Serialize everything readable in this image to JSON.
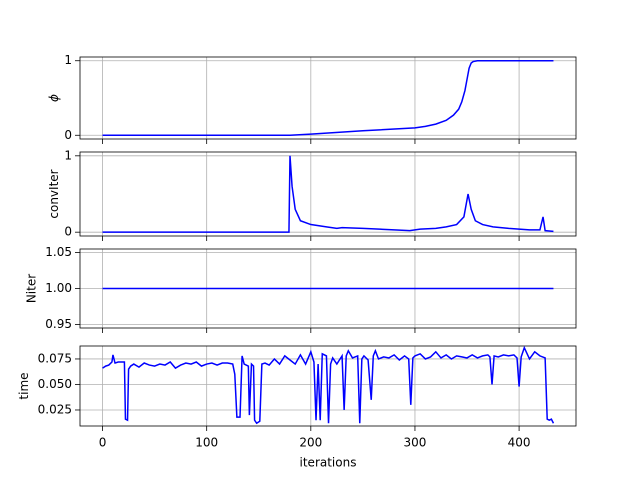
{
  "chart_data": [
    {
      "type": "line",
      "ylabel": "ϕ",
      "grid": true,
      "ylim": [
        -0.05,
        1.05
      ],
      "yticks": [
        0,
        1
      ],
      "x": [
        0,
        100,
        180,
        200,
        250,
        300,
        310,
        320,
        330,
        337,
        342,
        345,
        348,
        350,
        352,
        354,
        356,
        360,
        380,
        400,
        420,
        433
      ],
      "series": [
        {
          "color": "#0000ff",
          "values": [
            0,
            0,
            0,
            0.015,
            0.06,
            0.1,
            0.12,
            0.15,
            0.2,
            0.27,
            0.35,
            0.45,
            0.6,
            0.75,
            0.9,
            0.97,
            0.99,
            1.0,
            1.0,
            1.0,
            1.0,
            1.0
          ]
        }
      ]
    },
    {
      "type": "line",
      "ylabel": "convIter",
      "grid": true,
      "ylim": [
        -0.05,
        1.05
      ],
      "yticks": [
        0,
        1
      ],
      "x": [
        0,
        100,
        179,
        180,
        182,
        185,
        190,
        200,
        215,
        225,
        230,
        250,
        280,
        295,
        305,
        320,
        330,
        340,
        347,
        351,
        354,
        358,
        365,
        375,
        390,
        410,
        420,
        423,
        425,
        433
      ],
      "series": [
        {
          "color": "#0000ff",
          "values": [
            0,
            0,
            0,
            1,
            0.6,
            0.3,
            0.15,
            0.1,
            0.07,
            0.05,
            0.06,
            0.05,
            0.03,
            0.02,
            0.04,
            0.05,
            0.07,
            0.1,
            0.2,
            0.5,
            0.3,
            0.15,
            0.1,
            0.07,
            0.05,
            0.03,
            0.03,
            0.2,
            0.02,
            0.01
          ]
        }
      ]
    },
    {
      "type": "line",
      "ylabel": "Niter",
      "grid": true,
      "ylim": [
        0.945,
        1.055
      ],
      "yticks": [
        {
          "value": 0.95,
          "label": "0.95"
        },
        {
          "value": 1,
          "label": "1.00"
        },
        {
          "value": 1.05,
          "label": "1.05"
        }
      ],
      "x": [
        0,
        433
      ],
      "series": [
        {
          "color": "#0000ff",
          "values": [
            1,
            1
          ]
        }
      ]
    },
    {
      "type": "line",
      "ylabel": "time",
      "xlabel": "iterations",
      "grid": true,
      "ylim": [
        0.0093,
        0.0877
      ],
      "yticks": [
        0.025,
        {
          "value": 0.05,
          "label": "0.050"
        },
        0.075
      ],
      "xlim": [
        -21.65,
        454.65
      ],
      "xticks": [
        0,
        100,
        200,
        300,
        400
      ],
      "x": [
        0,
        3,
        6,
        9,
        10,
        12,
        15,
        18,
        21,
        22,
        24,
        25,
        27,
        30,
        35,
        40,
        45,
        50,
        55,
        60,
        65,
        70,
        75,
        80,
        85,
        90,
        95,
        100,
        105,
        110,
        115,
        120,
        125,
        127,
        129,
        132,
        134,
        136,
        140,
        141,
        143,
        145,
        146,
        148,
        151,
        153,
        156,
        160,
        165,
        170,
        175,
        180,
        185,
        190,
        195,
        200,
        203,
        205,
        207,
        209,
        211,
        215,
        217,
        219,
        221,
        225,
        230,
        232,
        234,
        236,
        240,
        245,
        247,
        249,
        251,
        255,
        258,
        260,
        262,
        265,
        270,
        275,
        280,
        285,
        290,
        294,
        296,
        298,
        300,
        305,
        310,
        315,
        320,
        325,
        330,
        335,
        340,
        345,
        350,
        355,
        360,
        365,
        370,
        372,
        374,
        376,
        380,
        385,
        390,
        395,
        398,
        400,
        402,
        405,
        410,
        415,
        420,
        425,
        427,
        429,
        431,
        433
      ],
      "series": [
        {
          "color": "#0000ff",
          "values": [
            0.066,
            0.068,
            0.069,
            0.072,
            0.079,
            0.071,
            0.072,
            0.072,
            0.072,
            0.016,
            0.015,
            0.065,
            0.068,
            0.07,
            0.067,
            0.071,
            0.069,
            0.068,
            0.07,
            0.069,
            0.072,
            0.066,
            0.069,
            0.071,
            0.07,
            0.072,
            0.068,
            0.07,
            0.071,
            0.069,
            0.071,
            0.071,
            0.07,
            0.06,
            0.018,
            0.018,
            0.078,
            0.07,
            0.068,
            0.02,
            0.07,
            0.068,
            0.015,
            0.012,
            0.014,
            0.07,
            0.071,
            0.069,
            0.075,
            0.07,
            0.078,
            0.074,
            0.07,
            0.079,
            0.07,
            0.082,
            0.072,
            0.015,
            0.07,
            0.015,
            0.08,
            0.078,
            0.012,
            0.07,
            0.076,
            0.07,
            0.078,
            0.025,
            0.078,
            0.083,
            0.076,
            0.078,
            0.012,
            0.075,
            0.078,
            0.074,
            0.035,
            0.078,
            0.083,
            0.075,
            0.077,
            0.076,
            0.079,
            0.074,
            0.078,
            0.075,
            0.03,
            0.076,
            0.078,
            0.08,
            0.075,
            0.077,
            0.082,
            0.076,
            0.079,
            0.075,
            0.078,
            0.077,
            0.076,
            0.079,
            0.076,
            0.078,
            0.079,
            0.077,
            0.05,
            0.078,
            0.077,
            0.079,
            0.078,
            0.079,
            0.076,
            0.048,
            0.077,
            0.086,
            0.075,
            0.082,
            0.078,
            0.076,
            0.016,
            0.015,
            0.016,
            0.012
          ]
        }
      ]
    }
  ]
}
